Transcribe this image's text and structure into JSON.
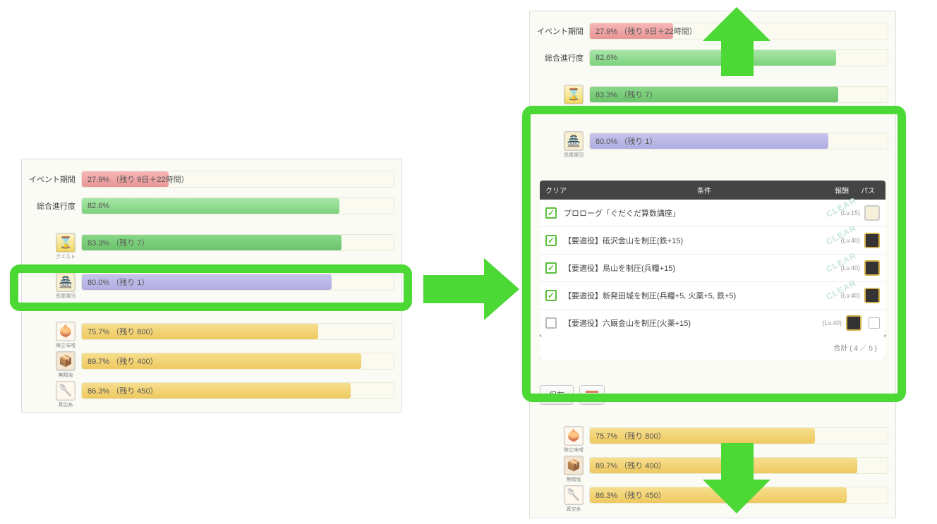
{
  "colors": {
    "highlight_green": "#4cd835",
    "bar_pink": "#f0a4a4",
    "bar_green": "#8fd78f",
    "bar_purple": "#bcb9e6",
    "bar_yellow": "#f2d178"
  },
  "left": {
    "event": {
      "label": "イベント期間",
      "text": "27.9% （残り 9日＋22時間）",
      "pct": 27.9
    },
    "overall": {
      "label": "総合進行度",
      "text": "82.6%",
      "pct": 82.6
    },
    "quest": {
      "label": "クエスト",
      "text": "83.3% （残り 7）",
      "pct": 83.3
    },
    "castle": {
      "label": "長尾軍団",
      "text": "80.0% （残り 1）",
      "pct": 80.0
    },
    "egg": {
      "label": "陣立味噌",
      "text": "75.7% （残り 800）",
      "pct": 75.7
    },
    "box": {
      "label": "無精塩",
      "text": "89.7% （残り 400）",
      "pct": 89.7
    },
    "spoon": {
      "label": "真空糸",
      "text": "86.3% （残り 450）",
      "pct": 86.3
    }
  },
  "right": {
    "event": {
      "label": "イベント期間",
      "text": "27.9% （残り 9日＋22時間）",
      "pct": 27.9
    },
    "overall": {
      "label": "総合進行度",
      "text": "82.6%",
      "pct": 82.6
    },
    "quest": {
      "label": "クエスト",
      "text": "83.3% （残り 7）",
      "pct": 83.3
    },
    "castle": {
      "label": "長尾軍団",
      "text": "80.0% （残り 1）",
      "pct": 80.0
    },
    "egg": {
      "label": "陣立味噌",
      "text": "75.7% （残り 800）",
      "pct": 75.7
    },
    "box": {
      "label": "無精塩",
      "text": "89.7% （残り 400）",
      "pct": 89.7
    },
    "spoon": {
      "label": "真空糸",
      "text": "86.3% （残り 450）",
      "pct": 86.3
    }
  },
  "table": {
    "columns": {
      "clear": "クリア",
      "cond": "条件",
      "reward": "報酬",
      "pass": "パス"
    },
    "rows": [
      {
        "done": true,
        "text": "プロローグ「ぐだぐだ算数講座」",
        "lv": "(Lv.15)",
        "reward": "light",
        "clear": true
      },
      {
        "done": true,
        "text": "【要適役】砥沢金山を制圧(鉄+15)",
        "lv": "(Lv.40)",
        "reward": "dark",
        "clear": true
      },
      {
        "done": true,
        "text": "【要適役】鳥山を制圧(兵糧+15)",
        "lv": "(Lv.40)",
        "reward": "dark",
        "clear": true
      },
      {
        "done": true,
        "text": "【要適役】新発田城を制圧(兵糧+5, 火薬+5, 鉄+5)",
        "lv": "(Lv.40)",
        "reward": "dark",
        "clear": true
      },
      {
        "done": false,
        "text": "【要適役】六厩金山を制圧(火薬+15)",
        "lv": "(Lv.40)",
        "reward": "dark",
        "clear": false,
        "pass": true
      }
    ],
    "total": "合計 ( 4 ／ 5 )"
  },
  "actions": {
    "save": "保存"
  }
}
